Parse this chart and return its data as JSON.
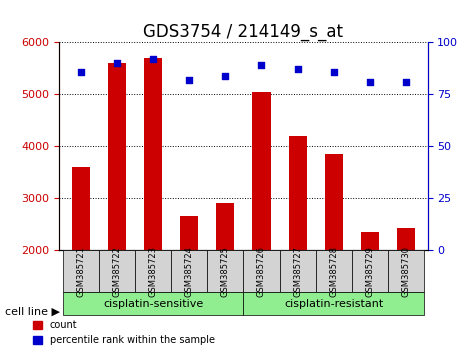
{
  "title": "GDS3754 / 214149_s_at",
  "samples": [
    "GSM385721",
    "GSM385722",
    "GSM385723",
    "GSM385724",
    "GSM385725",
    "GSM385726",
    "GSM385727",
    "GSM385728",
    "GSM385729",
    "GSM385730"
  ],
  "counts": [
    3600,
    5600,
    5700,
    2650,
    2900,
    5050,
    4200,
    3850,
    2350,
    2420
  ],
  "percentile_ranks": [
    86,
    90,
    92,
    82,
    84,
    89,
    87,
    86,
    81,
    81
  ],
  "bar_color": "#cc0000",
  "dot_color": "#0000cc",
  "ylim_left": [
    2000,
    6000
  ],
  "ylim_right": [
    0,
    100
  ],
  "yticks_left": [
    2000,
    3000,
    4000,
    5000,
    6000
  ],
  "yticks_right": [
    0,
    25,
    50,
    75,
    100
  ],
  "group1_label": "cisplatin-sensitive",
  "group2_label": "cisplatin-resistant",
  "group1_indices": [
    0,
    1,
    2,
    3,
    4
  ],
  "group2_indices": [
    5,
    6,
    7,
    8,
    9
  ],
  "cell_line_label": "cell line",
  "legend_count": "count",
  "legend_percentile": "percentile rank within the sample",
  "group_bg_color": "#90ee90",
  "xlabel_color": "#cc0000",
  "ylabel_right_color": "#0000cc",
  "title_fontsize": 12,
  "tick_label_fontsize": 8,
  "axis_label_fontsize": 9
}
